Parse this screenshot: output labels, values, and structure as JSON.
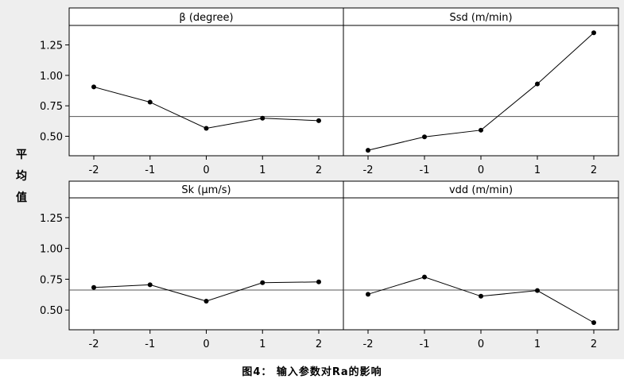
{
  "chart_data": [
    {
      "type": "line",
      "title": "β (degree)",
      "x": [
        -2,
        -1,
        0,
        1,
        2
      ],
      "y": [
        0.905,
        0.78,
        0.565,
        0.648,
        0.628
      ],
      "ylim": [
        0.34,
        1.41
      ],
      "ref_line": 0.662
    },
    {
      "type": "line",
      "title": "Ssd (m/min)",
      "x": [
        -2,
        -1,
        0,
        1,
        2
      ],
      "y": [
        0.385,
        0.495,
        0.55,
        0.93,
        1.35
      ],
      "ylim": [
        0.34,
        1.41
      ],
      "ref_line": 0.662
    },
    {
      "type": "line",
      "title": "Sk (μm/s)",
      "x": [
        -2,
        -1,
        0,
        1,
        2
      ],
      "y": [
        0.683,
        0.705,
        0.572,
        0.722,
        0.728
      ],
      "ylim": [
        0.34,
        1.41
      ],
      "ref_line": 0.662
    },
    {
      "type": "line",
      "title": "vdd (m/min)",
      "x": [
        -2,
        -1,
        0,
        1,
        2
      ],
      "y": [
        0.628,
        0.768,
        0.612,
        0.658,
        0.398
      ],
      "ylim": [
        0.34,
        1.41
      ],
      "ref_line": 0.662
    }
  ],
  "yticks": [
    0.5,
    0.75,
    1.0,
    1.25
  ],
  "ytick_labels": [
    "0.50",
    "0.75",
    "1.00",
    "1.25"
  ],
  "xtick_labels": [
    "-2",
    "-1",
    "0",
    "1",
    "2"
  ],
  "ylabel_chars": [
    "平",
    "均",
    "值"
  ],
  "caption": "图4： 输入参数对Ra的影响"
}
